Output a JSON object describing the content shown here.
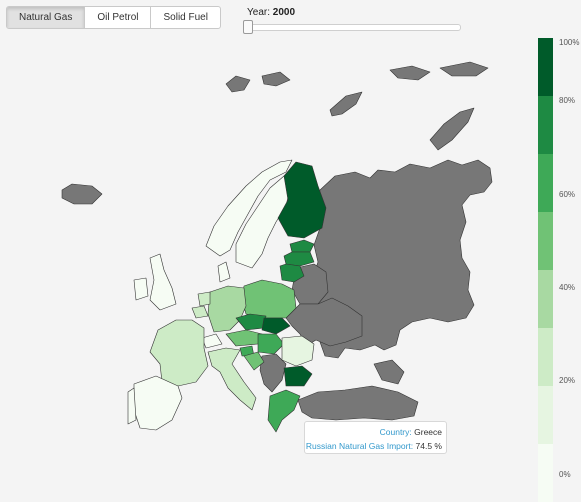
{
  "toolbar": {
    "buttons": [
      "Natural Gas",
      "Oil Petrol",
      "Solid Fuel"
    ],
    "active": "Natural Gas"
  },
  "year": {
    "label": "Year:",
    "value": "2000"
  },
  "legend": {
    "labels": [
      "100%",
      "80%",
      "60%",
      "40%",
      "20%",
      "0%"
    ],
    "colors": [
      "#005b2a",
      "#1e8a43",
      "#3ea957",
      "#70c275",
      "#a8d9a2",
      "#cdebc6",
      "#e6f5e1",
      "#f6fcf4"
    ]
  },
  "tooltip": {
    "country_key": "Country:",
    "country_val": "Greece",
    "metric_key": "Russian Natural Gas Import:",
    "metric_val": "74.5 %"
  },
  "map": {
    "colors": {
      "no_data": "#777777",
      "stroke": "#333333"
    },
    "countries": [
      {
        "name": "Finland",
        "level": 0
      },
      {
        "name": "Sweden",
        "level": 7
      },
      {
        "name": "Norway",
        "level": 7
      },
      {
        "name": "Estonia",
        "level": 1
      },
      {
        "name": "Latvia",
        "level": 1
      },
      {
        "name": "Lithuania",
        "level": 1
      },
      {
        "name": "Poland",
        "level": 3
      },
      {
        "name": "Germany",
        "level": 5
      },
      {
        "name": "Czech Republic",
        "level": 1
      },
      {
        "name": "Slovakia",
        "level": 0
      },
      {
        "name": "Austria",
        "level": 3
      },
      {
        "name": "Hungary",
        "level": 2
      },
      {
        "name": "Slovenia",
        "level": 2
      },
      {
        "name": "Romania",
        "level": 6
      },
      {
        "name": "Bulgaria",
        "level": 0
      },
      {
        "name": "Greece",
        "level": 2
      },
      {
        "name": "Italy",
        "level": 5
      },
      {
        "name": "France",
        "level": 5
      },
      {
        "name": "Spain",
        "level": 7
      },
      {
        "name": "Portugal",
        "level": 7
      },
      {
        "name": "Netherlands",
        "level": 6
      },
      {
        "name": "Belgium",
        "level": 6
      },
      {
        "name": "Switzerland",
        "level": 7
      },
      {
        "name": "Croatia",
        "level": 3
      }
    ]
  }
}
